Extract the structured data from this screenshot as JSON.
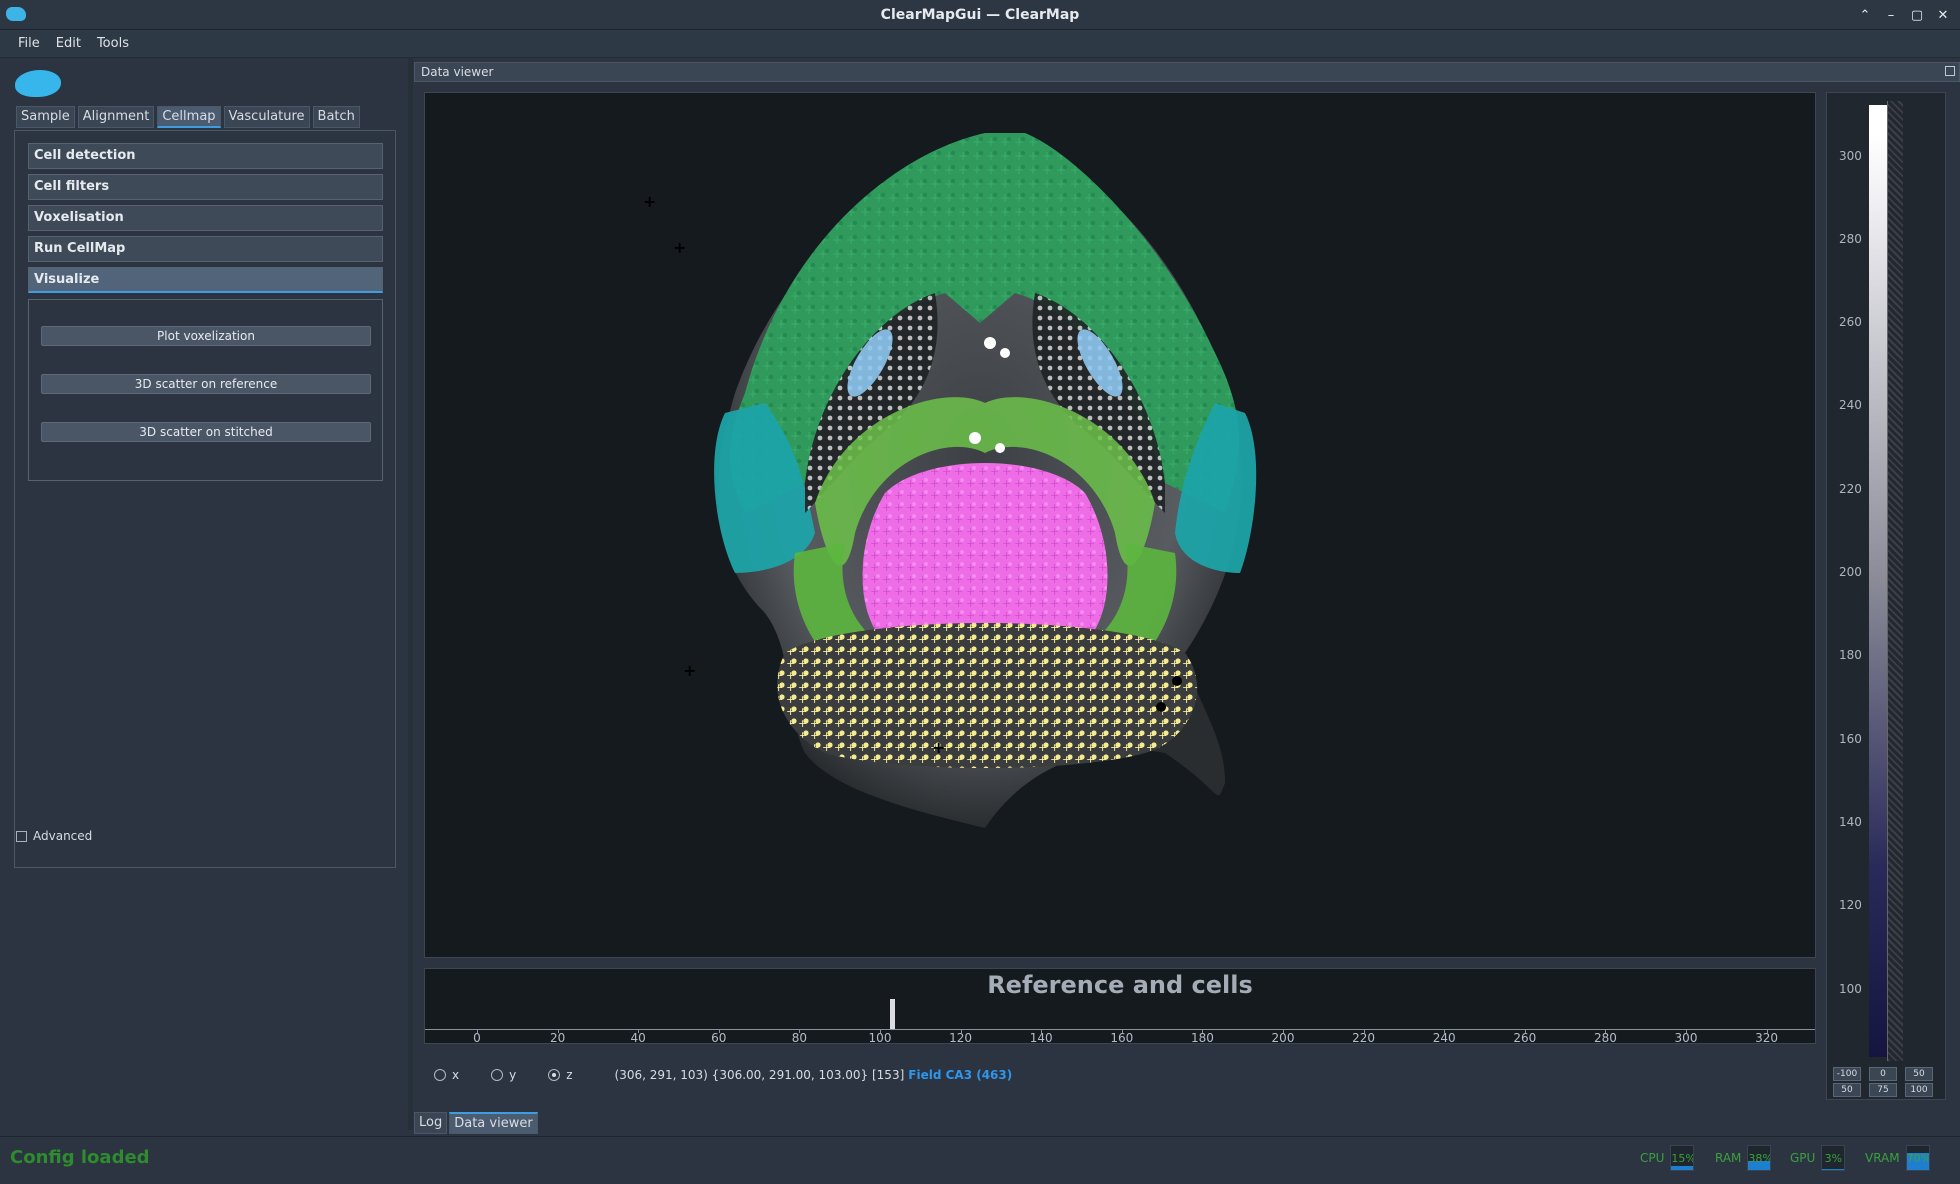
{
  "window": {
    "title": "ClearMapGui — ClearMap",
    "controls": [
      "⌃",
      "–",
      "▢",
      "✕"
    ]
  },
  "menu": {
    "items": [
      "File",
      "Edit",
      "Tools"
    ]
  },
  "left": {
    "tabs": [
      "Sample",
      "Alignment",
      "Cellmap",
      "Vasculature",
      "Batch"
    ],
    "active_tab": "Cellmap",
    "sections": [
      "Cell detection",
      "Cell filters",
      "Voxelisation",
      "Run CellMap",
      "Visualize"
    ],
    "active_section": "Visualize",
    "buttons": [
      "Plot voxelization",
      "3D scatter on reference",
      "3D scatter on stitched"
    ],
    "advanced_label": "Advanced",
    "advanced_checked": false
  },
  "dock": {
    "title": "Data viewer"
  },
  "viewer": {
    "timeline_title": "Reference and cells",
    "timeline_ticks": [
      "0",
      "20",
      "40",
      "60",
      "80",
      "100",
      "120",
      "140",
      "160",
      "180",
      "200",
      "220",
      "240",
      "260",
      "280",
      "300",
      "320"
    ],
    "current_slice": 103
  },
  "histogram": {
    "ticks": [
      "300",
      "280",
      "260",
      "240",
      "220",
      "200",
      "180",
      "160",
      "140",
      "120",
      "100"
    ],
    "buttons_top": [
      "-100",
      "0",
      "50"
    ],
    "buttons_bottom": [
      "50",
      "75",
      "100"
    ]
  },
  "coords": {
    "axes": [
      "x",
      "y",
      "z"
    ],
    "selected_axis": "z",
    "info": "(306, 291, 103) {306.00, 291.00, 103.00} [153]",
    "region": "Field CA3 (463)"
  },
  "bottom_tabs": [
    "Log",
    "Data viewer"
  ],
  "active_bottom_tab": "Data viewer",
  "status": {
    "message": "Config loaded",
    "monitors": [
      {
        "label": "CPU",
        "value": "15%",
        "fill": 0.15
      },
      {
        "label": "RAM",
        "value": "38%",
        "fill": 0.38
      },
      {
        "label": "GPU",
        "value": "3%",
        "fill": 0.03
      },
      {
        "label": "VRAM",
        "value": "70%",
        "fill": 0.7
      }
    ]
  },
  "colors": {
    "accent": "#3d9de0",
    "region_link": "#2f96ec",
    "status_ok": "#2e8b2e",
    "cortex_green": "#2a8f5a",
    "hippocampus": "#6cc24a",
    "thalamus_pink": "#f06ce8",
    "cerebellum_yellow": "#f7ef98",
    "piriform_teal": "#1ea3a8",
    "fiber_gray": "#c7c7c7",
    "ventricle_blue": "#8ec6ee"
  }
}
